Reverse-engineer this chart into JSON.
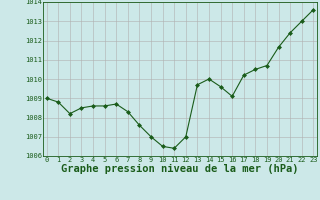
{
  "x": [
    0,
    1,
    2,
    3,
    4,
    5,
    6,
    7,
    8,
    9,
    10,
    11,
    12,
    13,
    14,
    15,
    16,
    17,
    18,
    19,
    20,
    21,
    22,
    23
  ],
  "y": [
    1009.0,
    1008.8,
    1008.2,
    1008.5,
    1008.6,
    1008.6,
    1008.7,
    1008.3,
    1007.6,
    1007.0,
    1006.5,
    1006.4,
    1007.0,
    1009.7,
    1010.0,
    1009.6,
    1009.1,
    1010.2,
    1010.5,
    1010.7,
    1011.65,
    1012.4,
    1013.0,
    1013.6
  ],
  "line_color": "#1a5c1a",
  "marker": "D",
  "marker_size": 2.0,
  "bg_color": "#cce8e8",
  "grid_color": "#b0b0b0",
  "xlabel": "Graphe pression niveau de la mer (hPa)",
  "xlabel_fontsize": 7.5,
  "xlabel_color": "#1a5c1a",
  "tick_label_color": "#1a5c1a",
  "tick_fontsize": 5.0,
  "ylim": [
    1006.0,
    1014.0
  ],
  "yticks": [
    1006,
    1007,
    1008,
    1009,
    1010,
    1011,
    1012,
    1013,
    1014
  ],
  "xticks": [
    0,
    1,
    2,
    3,
    4,
    5,
    6,
    7,
    8,
    9,
    10,
    11,
    12,
    13,
    14,
    15,
    16,
    17,
    18,
    19,
    20,
    21,
    22,
    23
  ],
  "xlim": [
    -0.3,
    23.3
  ]
}
